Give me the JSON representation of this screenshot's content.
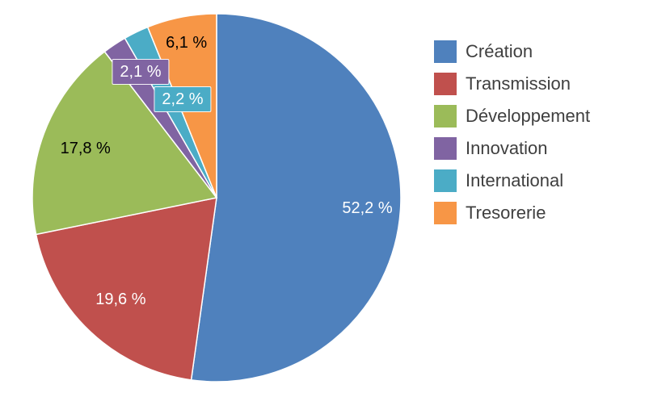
{
  "chart_data": {
    "type": "pie",
    "title": "",
    "legend_position": "right",
    "direction": "clockwise",
    "start_angle_deg": 0,
    "categories": [
      "Création",
      "Transmission",
      "Développement",
      "Innovation",
      "International",
      "Tresorerie"
    ],
    "values": [
      52.2,
      19.6,
      17.8,
      2.1,
      2.2,
      6.1
    ],
    "unit": "%",
    "colors": [
      "#4F81BD",
      "#C0504D",
      "#9BBB59",
      "#8064A2",
      "#4BACC6",
      "#F79646"
    ],
    "data_labels": [
      "52,2 %",
      "19,6 %",
      "17,8 %",
      "2,1 %",
      "2,2 %",
      "6,1 %"
    ],
    "data_label_text_colors": [
      "#FFFFFF",
      "#FFFFFF",
      "#000000",
      "#FFFFFF",
      "#FFFFFF",
      "#000000"
    ],
    "data_label_callout": [
      false,
      false,
      false,
      true,
      true,
      false
    ],
    "background": "#FFFFFF"
  }
}
